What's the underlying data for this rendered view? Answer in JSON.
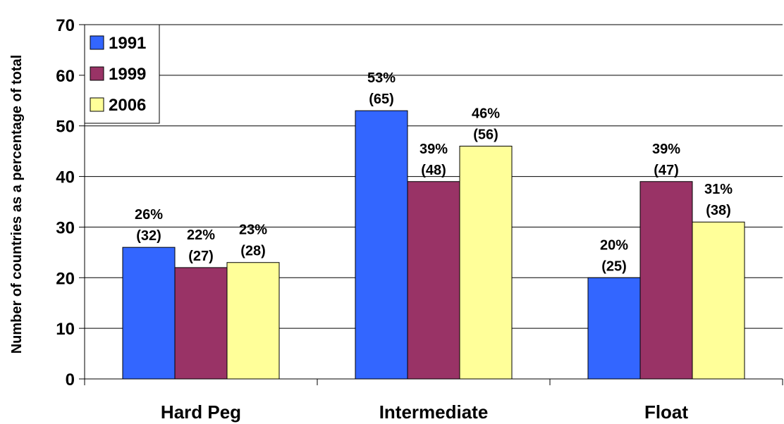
{
  "chart_data": {
    "type": "bar",
    "title": "",
    "xlabel": "",
    "ylabel": "Number of countries as a percentage of total",
    "ylim": [
      0,
      70
    ],
    "yticks": [
      0,
      10,
      20,
      30,
      40,
      50,
      60,
      70
    ],
    "grid": true,
    "legend_position": "top-left",
    "categories": [
      "Hard Peg",
      "Intermediate",
      "Float"
    ],
    "series": [
      {
        "name": "1991",
        "color": "#3366ff",
        "values": [
          26,
          53,
          20
        ],
        "labels": [
          [
            "26%",
            "(32)"
          ],
          [
            "53%",
            "(65)"
          ],
          [
            "20%",
            "(25)"
          ]
        ]
      },
      {
        "name": "1999",
        "color": "#993366",
        "values": [
          22,
          39,
          39
        ],
        "labels": [
          [
            "22%",
            "(27)"
          ],
          [
            "39%",
            "(48)"
          ],
          [
            "39%",
            "(47)"
          ]
        ]
      },
      {
        "name": "2006",
        "color": "#ffff99",
        "values": [
          23,
          46,
          31
        ],
        "labels": [
          [
            "23%",
            "(28)"
          ],
          [
            "46%",
            "(56)"
          ],
          [
            "31%",
            "(38)"
          ]
        ]
      }
    ]
  }
}
